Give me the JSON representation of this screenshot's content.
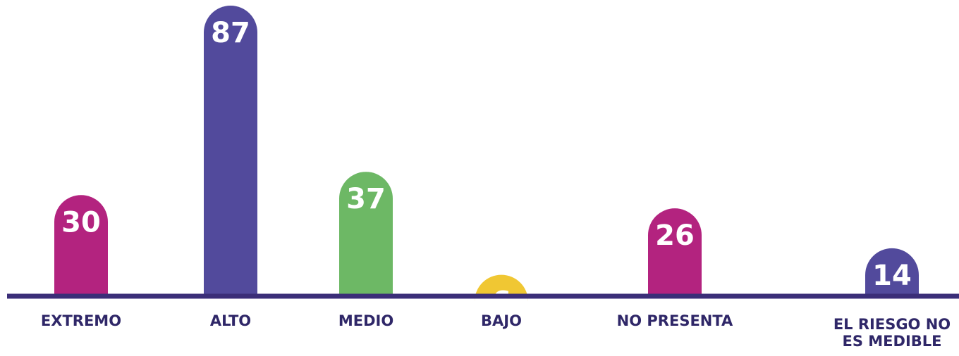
{
  "chart_data": {
    "type": "bar",
    "categories": [
      [
        "EXTREMO"
      ],
      [
        "ALTO"
      ],
      [
        "MEDIO"
      ],
      [
        "BAJO"
      ],
      [
        "NO PRESENTA"
      ],
      [
        "EL RIESGO NO",
        "ES MEDIBLE"
      ]
    ],
    "values": [
      30,
      87,
      37,
      6,
      26,
      14
    ],
    "colors": [
      "#b3237f",
      "#524a9c",
      "#6db865",
      "#f0c733",
      "#b3237f",
      "#524a9c"
    ],
    "axis_color": "#3b2e78",
    "label_color": "#2f2768",
    "value_label_color": "#ffffff",
    "ylim": [
      0,
      87
    ],
    "grid": false
  }
}
